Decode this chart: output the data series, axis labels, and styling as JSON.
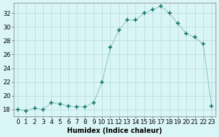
{
  "x": [
    0,
    1,
    2,
    3,
    4,
    5,
    6,
    7,
    8,
    9,
    10,
    11,
    12,
    13,
    14,
    15,
    16,
    17,
    18,
    19,
    20,
    21,
    22,
    23
  ],
  "y": [
    18.0,
    17.8,
    18.2,
    18.0,
    19.0,
    18.8,
    18.5,
    18.4,
    18.4,
    19.0,
    22.0,
    27.0,
    29.5,
    31.0,
    31.0,
    32.0,
    32.5,
    33.0,
    32.0,
    30.5,
    29.0,
    28.5,
    27.5,
    18.5
  ],
  "xlabel": "Humidex (Indice chaleur)",
  "ylim": [
    17,
    33.5
  ],
  "xlim": [
    -0.5,
    23.5
  ],
  "yticks": [
    18,
    20,
    22,
    24,
    26,
    28,
    30,
    32
  ],
  "xtick_labels": [
    "0",
    "1",
    "2",
    "3",
    "4",
    "5",
    "6",
    "7",
    "8",
    "9",
    "10",
    "11",
    "12",
    "13",
    "14",
    "15",
    "16",
    "17",
    "18",
    "19",
    "20",
    "21",
    "22",
    "23"
  ],
  "line_color": "#1a7a6e",
  "marker": "+",
  "marker_size": 4,
  "bg_color": "#daf5f5",
  "grid_color": "#b8dede",
  "label_fontsize": 7,
  "tick_fontsize": 6.5
}
